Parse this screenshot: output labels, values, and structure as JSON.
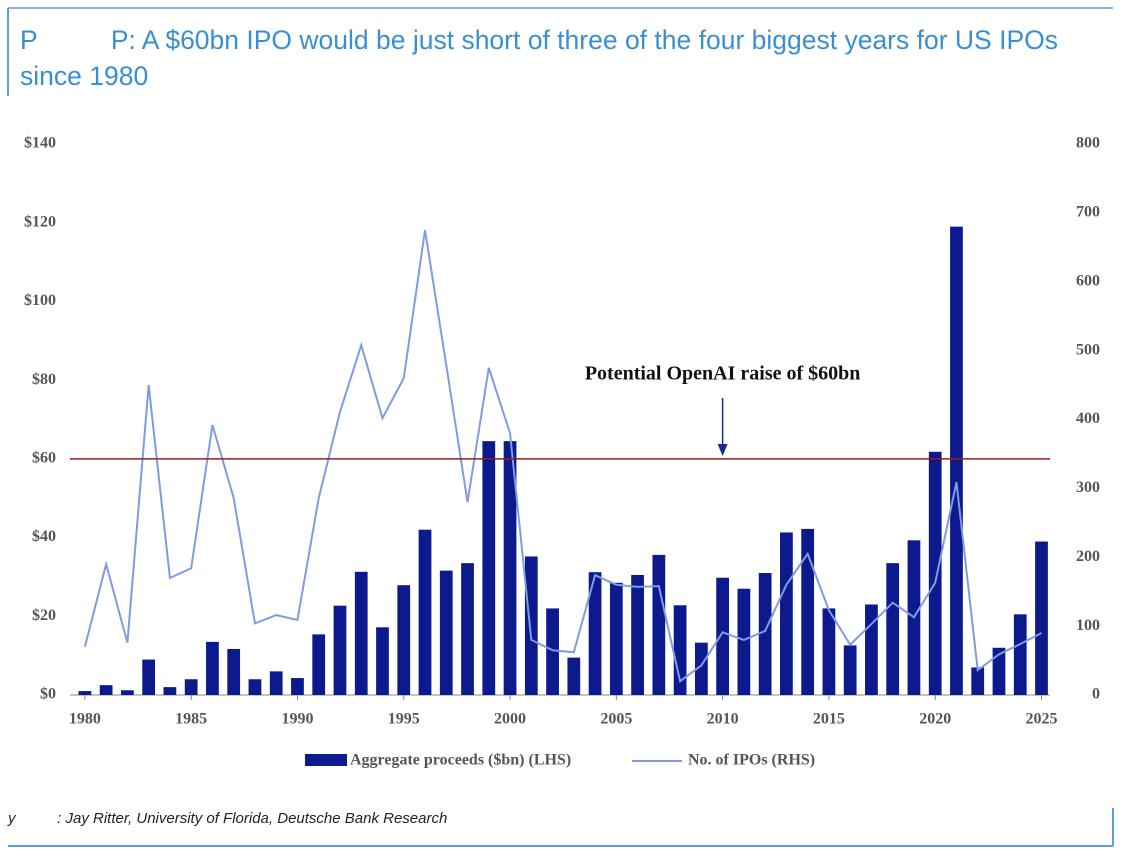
{
  "header": {
    "title": "P          P: A $60bn IPO would be just short of three of the four biggest years for US IPOs since 1980"
  },
  "chart_data": {
    "type": "bar_line",
    "x": [
      1980,
      1981,
      1982,
      1983,
      1984,
      1985,
      1986,
      1987,
      1988,
      1989,
      1990,
      1991,
      1992,
      1993,
      1994,
      1995,
      1996,
      1997,
      1998,
      1999,
      2000,
      2001,
      2002,
      2003,
      2004,
      2005,
      2006,
      2007,
      2008,
      2009,
      2010,
      2011,
      2012,
      2013,
      2014,
      2015,
      2016,
      2017,
      2018,
      2019,
      2020,
      2021,
      2022,
      2023,
      2024,
      2025
    ],
    "series": [
      {
        "name": "Aggregate proceeds ($bn) (LHS)",
        "type": "bar",
        "color": "#0c1a8e",
        "axis": "y",
        "values": [
          1,
          2.5,
          1.2,
          9,
          2,
          4,
          13.5,
          11.7,
          4,
          6,
          4.3,
          15.4,
          22.7,
          31.3,
          17.2,
          27.9,
          42,
          31.6,
          33.5,
          64.5,
          64.5,
          35.2,
          22,
          9.5,
          31.2,
          28.5,
          30.5,
          35.6,
          22.8,
          13.3,
          29.8,
          27,
          31,
          41.3,
          42.2,
          22,
          12.6,
          23,
          33.5,
          39.3,
          61.8,
          119,
          7,
          12,
          20.5,
          39
        ]
      },
      {
        "name": "No. of IPOs (RHS)",
        "type": "line",
        "color": "#7f9ce2",
        "axis": "y2",
        "values": [
          70,
          190,
          76,
          450,
          170,
          184,
          392,
          286,
          104,
          116,
          109,
          286,
          411,
          508,
          402,
          460,
          675,
          479,
          280,
          475,
          380,
          80,
          65,
          62,
          174,
          160,
          157,
          158,
          20,
          43,
          91,
          80,
          93,
          160,
          205,
          123,
          73,
          103,
          134,
          113,
          163,
          309,
          36,
          59,
          74,
          90
        ]
      }
    ],
    "xlim": [
      1979.3,
      2025.4
    ],
    "xticks": [
      1980,
      1985,
      1990,
      1995,
      2000,
      2005,
      2010,
      2015,
      2020,
      2025
    ],
    "ylim": [
      0,
      140
    ],
    "yticks": [
      {
        "value": 0,
        "label": "$0"
      },
      {
        "value": 20,
        "label": "$20"
      },
      {
        "value": 40,
        "label": "$40"
      },
      {
        "value": 60,
        "label": "$60"
      },
      {
        "value": 80,
        "label": "$80"
      },
      {
        "value": 100,
        "label": "$100"
      },
      {
        "value": 120,
        "label": "$120"
      },
      {
        "value": 140,
        "label": "$140"
      }
    ],
    "y2lim": [
      0,
      800
    ],
    "y2ticks": [
      0,
      100,
      200,
      300,
      400,
      500,
      600,
      700,
      800
    ],
    "reference_line": {
      "value": 60,
      "color": "#9b1c1c",
      "label": "Potential OpenAI raise of $60bn",
      "arrow_x": 2010
    }
  },
  "footer": {
    "source": "y          : Jay Ritter, University of Florida, Deutsche Bank Research"
  }
}
